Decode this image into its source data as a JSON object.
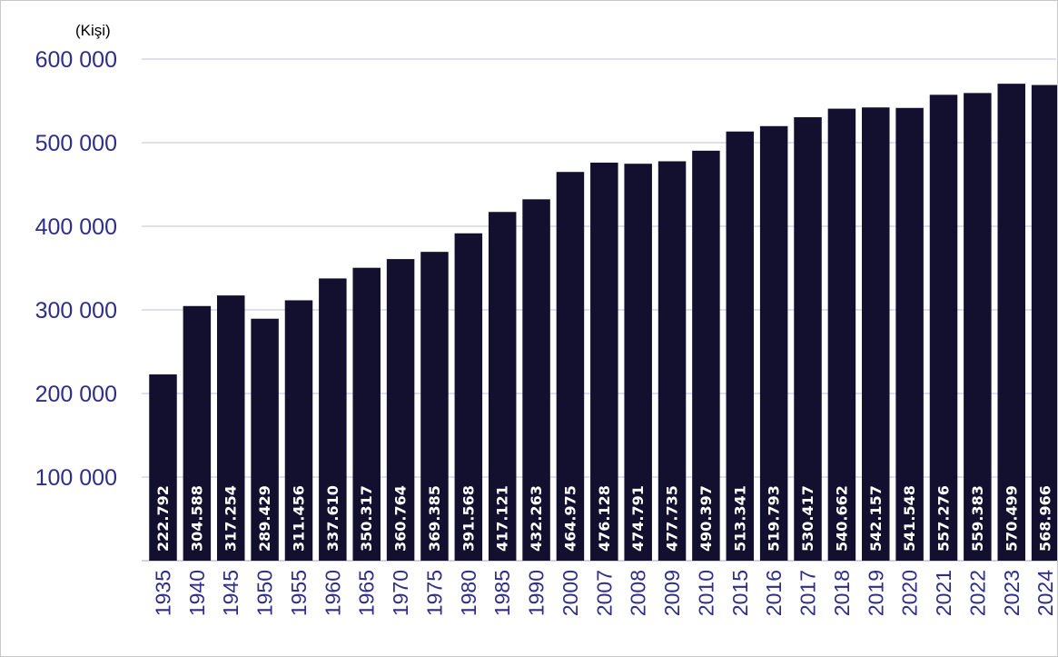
{
  "chart_data": {
    "type": "bar",
    "unit_label": "(Kişi)",
    "categories": [
      "1935",
      "1940",
      "1945",
      "1950",
      "1955",
      "1960",
      "1965",
      "1970",
      "1975",
      "1980",
      "1985",
      "1990",
      "2000",
      "2007",
      "2008",
      "2009",
      "2010",
      "2015",
      "2016",
      "2017",
      "2018",
      "2019",
      "2020",
      "2021",
      "2022",
      "2023",
      "2024"
    ],
    "values": [
      222792,
      304588,
      317254,
      289429,
      311456,
      337610,
      350317,
      360764,
      369385,
      391568,
      417121,
      432263,
      464975,
      476128,
      474791,
      477735,
      490397,
      513341,
      519793,
      530417,
      540662,
      542157,
      541548,
      557276,
      559383,
      570499,
      568966
    ],
    "value_labels": [
      "222.792",
      "304.588",
      "317.254",
      "289.429",
      "311.456",
      "337.610",
      "350.317",
      "360.764",
      "369.385",
      "391.568",
      "417.121",
      "432.263",
      "464.975",
      "476.128",
      "474.791",
      "477.735",
      "490.397",
      "513.341",
      "519.793",
      "530.417",
      "540.662",
      "542.157",
      "541.548",
      "557.276",
      "559.383",
      "570.499",
      "568.966"
    ],
    "yticks": [
      100000,
      200000,
      300000,
      400000,
      500000,
      600000
    ],
    "ytick_labels": [
      "100 000",
      "200 000",
      "300 000",
      "400 000",
      "500 000",
      "600 000"
    ],
    "ylim": [
      0,
      600000
    ],
    "grid": true,
    "bar_color": "#12102e",
    "axis_text_color": "#2e2e8a",
    "grid_color": "#c9c9e0"
  }
}
